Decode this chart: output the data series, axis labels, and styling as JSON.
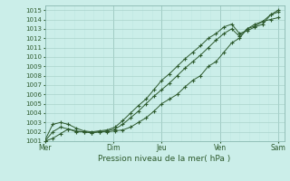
{
  "xlabel": "Pression niveau de la mer( hPa )",
  "background_color": "#cbeee9",
  "plot_bg_color": "#cbeee9",
  "grid_color_major": "#aad4cc",
  "grid_color_minor": "#c0e8e2",
  "line_color": "#2d5a2d",
  "x_ticks_labels": [
    "Mer",
    "Dim",
    "Jeu",
    "Ven",
    "Sam"
  ],
  "x_ticks_pos": [
    0,
    3.5,
    6.0,
    9.0,
    12.0
  ],
  "ylim": [
    1001,
    1015.5
  ],
  "xlim": [
    0,
    12.3
  ],
  "yticks": [
    1001,
    1002,
    1003,
    1004,
    1005,
    1006,
    1007,
    1008,
    1009,
    1010,
    1011,
    1012,
    1013,
    1014,
    1015
  ],
  "vlines": [
    0,
    3.5,
    6.0,
    9.0,
    12.0
  ],
  "line1_x": [
    0.0,
    0.4,
    0.8,
    1.2,
    1.6,
    2.0,
    2.4,
    2.8,
    3.2,
    3.6,
    4.0,
    4.4,
    4.8,
    5.2,
    5.6,
    6.0,
    6.4,
    6.8,
    7.2,
    7.6,
    8.0,
    8.4,
    8.8,
    9.2,
    9.6,
    10.0,
    10.4,
    10.8,
    11.2,
    11.6,
    12.0
  ],
  "line1_y": [
    1001.0,
    1001.3,
    1001.8,
    1002.3,
    1002.1,
    1002.0,
    1001.9,
    1002.0,
    1002.0,
    1002.1,
    1002.2,
    1002.5,
    1003.0,
    1003.5,
    1004.2,
    1005.0,
    1005.5,
    1006.0,
    1006.8,
    1007.5,
    1008.0,
    1009.0,
    1009.5,
    1010.5,
    1011.5,
    1012.0,
    1013.0,
    1013.5,
    1013.8,
    1014.0,
    1014.2
  ],
  "line2_x": [
    0.0,
    0.4,
    0.8,
    1.2,
    1.6,
    2.0,
    2.4,
    2.8,
    3.2,
    3.6,
    4.0,
    4.4,
    4.8,
    5.2,
    5.6,
    6.0,
    6.4,
    6.8,
    7.2,
    7.6,
    8.0,
    8.4,
    8.8,
    9.2,
    9.6,
    10.0,
    10.4,
    10.8,
    11.2,
    11.6,
    12.0
  ],
  "line2_y": [
    1001.1,
    1002.8,
    1003.0,
    1002.8,
    1002.4,
    1002.1,
    1002.0,
    1002.1,
    1002.2,
    1002.5,
    1003.2,
    1004.0,
    1004.8,
    1005.5,
    1006.5,
    1007.5,
    1008.2,
    1009.0,
    1009.8,
    1010.5,
    1011.2,
    1012.0,
    1012.5,
    1013.2,
    1013.5,
    1012.5,
    1012.8,
    1013.2,
    1013.5,
    1014.5,
    1015.0
  ],
  "line3_x": [
    0.0,
    0.4,
    0.8,
    1.2,
    1.6,
    2.0,
    2.4,
    2.8,
    3.2,
    3.6,
    4.0,
    4.4,
    4.8,
    5.2,
    5.6,
    6.0,
    6.4,
    6.8,
    7.2,
    7.6,
    8.0,
    8.4,
    8.8,
    9.2,
    9.6,
    10.0,
    10.4,
    10.8,
    11.2,
    11.6,
    12.0
  ],
  "line3_y": [
    1001.0,
    1002.0,
    1002.5,
    1002.3,
    1002.0,
    1002.0,
    1001.9,
    1002.0,
    1002.1,
    1002.3,
    1002.8,
    1003.5,
    1004.2,
    1005.0,
    1005.8,
    1006.5,
    1007.2,
    1008.0,
    1008.8,
    1009.5,
    1010.2,
    1011.0,
    1011.8,
    1012.5,
    1013.0,
    1012.2,
    1013.0,
    1013.3,
    1013.8,
    1014.5,
    1014.8
  ]
}
